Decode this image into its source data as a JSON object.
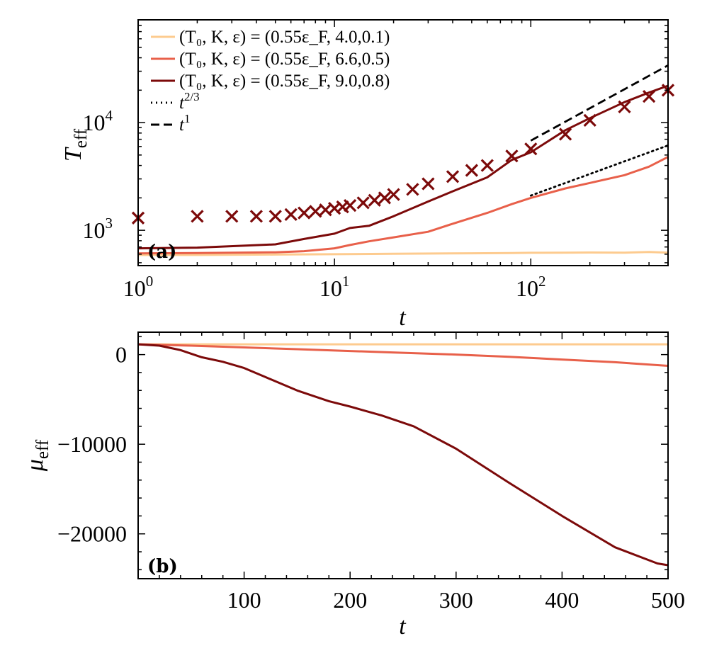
{
  "chart_data": [
    {
      "panel": "a",
      "panel_label": "(a)",
      "type": "line",
      "xscale": "log",
      "yscale": "log",
      "xlim": [
        1,
        500
      ],
      "ylim": [
        470,
        90000
      ],
      "xlabel": "t",
      "ylabel": "T",
      "ylabel_sub": "eff",
      "x_ticks": [
        {
          "value": 1,
          "base": "10",
          "exp": "0"
        },
        {
          "value": 10,
          "base": "10",
          "exp": "1"
        },
        {
          "value": 100,
          "base": "10",
          "exp": "2"
        }
      ],
      "y_ticks": [
        {
          "value": 1000,
          "base": "10",
          "exp": "3"
        },
        {
          "value": 10000,
          "base": "10",
          "exp": "4"
        }
      ],
      "legend": {
        "position": "top-left",
        "entries": [
          {
            "name": "(T₀, K, ε) = (0.55ε_F, 4.0,0.1)",
            "color": "#fdcb8f",
            "style": "solid"
          },
          {
            "name": "(T₀, K, ε) = (0.55ε_F, 6.6,0.5)",
            "color": "#e8604a",
            "style": "solid"
          },
          {
            "name": "(T₀, K, ε) = (0.55ε_F, 9.0,0.8)",
            "color": "#7c0a0a",
            "style": "solid"
          },
          {
            "name": "t^{2/3}",
            "base": "t",
            "exp": "2/3",
            "color": "#000000",
            "style": "dotted"
          },
          {
            "name": "t^{1}",
            "base": "t",
            "exp": "1",
            "color": "#000000",
            "style": "dashed"
          }
        ]
      },
      "series": [
        {
          "name": "K=4.0",
          "color": "#fdcb8f",
          "x": [
            1,
            2,
            5,
            10,
            20,
            50,
            80,
            100,
            150,
            200,
            300,
            400,
            500
          ],
          "y": [
            590,
            590,
            595,
            600,
            605,
            612,
            615,
            618,
            620,
            622,
            620,
            630,
            620
          ]
        },
        {
          "name": "K=6.6",
          "color": "#e8604a",
          "x": [
            1,
            2,
            5,
            7,
            10,
            12,
            15,
            20,
            30,
            40,
            60,
            80,
            100,
            150,
            200,
            300,
            400,
            500
          ],
          "y": [
            610,
            615,
            625,
            640,
            680,
            730,
            790,
            860,
            970,
            1150,
            1450,
            1750,
            2000,
            2450,
            2750,
            3250,
            3900,
            4800
          ]
        },
        {
          "name": "K=9.0",
          "color": "#7c0a0a",
          "x": [
            1,
            2,
            5,
            7,
            10,
            12,
            15,
            20,
            30,
            40,
            60,
            80,
            100,
            150,
            200,
            300,
            400,
            500
          ],
          "y": [
            680,
            690,
            740,
            830,
            930,
            1050,
            1100,
            1350,
            1850,
            2300,
            3100,
            4500,
            5300,
            8500,
            11000,
            15500,
            19000,
            22000
          ]
        },
        {
          "name": "K=9.0 markers",
          "color": "#7c0a0a",
          "marker": "x",
          "x": [
            1,
            2,
            3,
            4,
            5,
            6,
            7,
            8,
            9,
            10,
            11,
            12,
            14,
            16,
            18,
            20,
            25,
            30,
            40,
            50,
            60,
            80,
            100,
            150,
            200,
            300,
            400,
            500
          ],
          "y": [
            1300,
            1350,
            1350,
            1350,
            1350,
            1400,
            1450,
            1500,
            1550,
            1600,
            1650,
            1700,
            1800,
            1900,
            2000,
            2150,
            2400,
            2700,
            3150,
            3600,
            4000,
            4900,
            5700,
            7800,
            10500,
            14000,
            17500,
            20000
          ]
        }
      ],
      "reference_lines": [
        {
          "name": "t^{2/3}",
          "style": "dotted",
          "x": [
            100,
            500
          ],
          "y": [
            2100,
            6140
          ]
        },
        {
          "name": "t^{1}",
          "style": "dashed",
          "x": [
            100,
            500
          ],
          "y": [
            6800,
            34000
          ]
        }
      ]
    },
    {
      "panel": "b",
      "panel_label": "(b)",
      "type": "line",
      "xscale": "linear",
      "yscale": "linear",
      "xlim": [
        0,
        500
      ],
      "ylim": [
        -25000,
        2500
      ],
      "xlabel": "t",
      "ylabel": "μ",
      "ylabel_sub": "eff",
      "x_ticks": [
        100,
        200,
        300,
        400,
        500
      ],
      "y_ticks": [
        0,
        -10000,
        -20000
      ],
      "y_tick_labels": [
        "0",
        "−10000",
        "−20000"
      ],
      "series": [
        {
          "name": "K=4.0",
          "color": "#fdcb8f",
          "x": [
            0,
            100,
            200,
            300,
            400,
            500
          ],
          "y": [
            1150,
            1150,
            1150,
            1150,
            1150,
            1150
          ]
        },
        {
          "name": "K=6.6",
          "color": "#e8604a",
          "x": [
            0,
            50,
            100,
            150,
            200,
            250,
            300,
            350,
            400,
            450,
            500
          ],
          "y": [
            1150,
            1000,
            800,
            600,
            400,
            200,
            0,
            -250,
            -550,
            -850,
            -1250
          ]
        },
        {
          "name": "K=9.0",
          "color": "#7c0a0a",
          "x": [
            0,
            20,
            40,
            60,
            80,
            100,
            120,
            150,
            180,
            200,
            230,
            260,
            300,
            350,
            400,
            450,
            490,
            500
          ],
          "y": [
            1150,
            1000,
            500,
            -300,
            -800,
            -1500,
            -2500,
            -4000,
            -5200,
            -5800,
            -6800,
            -8000,
            -10500,
            -14300,
            -18000,
            -21500,
            -23300,
            -23500
          ]
        }
      ]
    }
  ]
}
